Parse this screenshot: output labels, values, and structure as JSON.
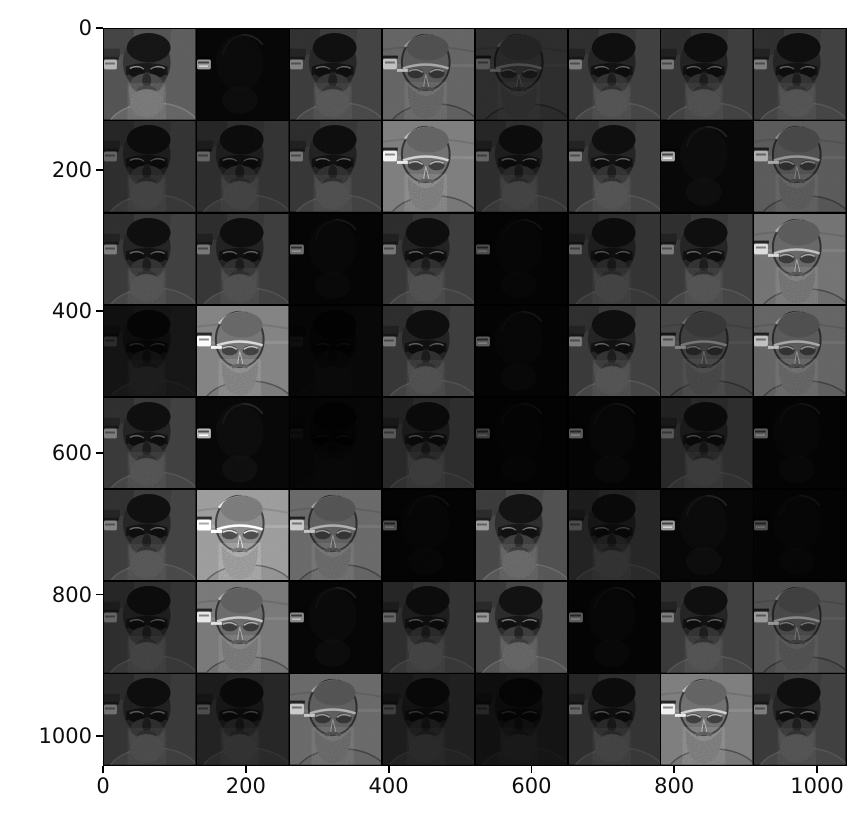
{
  "figure": {
    "title": "",
    "background": "#ffffff"
  },
  "chart_data": {
    "type": "heatmap",
    "subtype": "image-grid",
    "description": "Matplotlib imshow of an 8x8 montage (64 tiles) of dark grayscale convolutional feature maps / filtered versions of a bearded man's portrait. Tiles vary from nearly black (some with a single bright blob at the left edge) to medium-gray embossed relief renderings of the face.",
    "title": "",
    "xlabel": "",
    "ylabel": "",
    "x_ticks": [
      0,
      200,
      400,
      600,
      800,
      1000
    ],
    "y_ticks": [
      0,
      200,
      400,
      600,
      800,
      1000
    ],
    "x_range": [
      0,
      1042
    ],
    "y_range": [
      0,
      1042
    ],
    "y_inverted": true,
    "grid_rows": 8,
    "grid_cols": 8,
    "cell_size_units": 128,
    "padding_units": 2,
    "tile_legend": "Each entry is variant:brightness. variant = face (normal dark face map) | emboss (lighter relief/edge map) | spot (near-black with bright left blob) | dark (very dim face). brightness = relative intensity multiplier.",
    "tiles": [
      [
        "face:1.45",
        "spot:1.0",
        "face:1.05",
        "emboss:1.0",
        "emboss:0.45",
        "face:1.0",
        "face:0.95",
        "face:1.0"
      ],
      [
        "face:0.8",
        "face:0.8",
        "face:0.95",
        "emboss:1.25",
        "face:0.8",
        "face:1.0",
        "spot:1.1",
        "emboss:0.9"
      ],
      [
        "face:1.0",
        "face:0.95",
        "spot:0.7",
        "face:0.95",
        "spot:0.5",
        "face:0.8",
        "face:1.0",
        "emboss:1.15"
      ],
      [
        "dark:0.35",
        "emboss:1.3",
        "dark:0.12",
        "face:0.95",
        "spot:0.6",
        "face:1.0",
        "emboss:0.7",
        "emboss:1.0"
      ],
      [
        "face:1.0",
        "spot:1.2",
        "dark:0.1",
        "face:0.7",
        "spot:0.4",
        "spot:0.6",
        "face:0.7",
        "spot:0.6"
      ],
      [
        "face:1.05",
        "emboss:1.55",
        "emboss:1.05",
        "spot:0.5",
        "face:1.25",
        "face:0.6",
        "spot:1.0",
        "spot:0.5"
      ],
      [
        "face:0.8",
        "emboss:1.2",
        "spot:0.9",
        "face:0.8",
        "face:1.2",
        "spot:0.6",
        "face:1.0",
        "emboss:0.8"
      ],
      [
        "face:0.9",
        "face:0.6",
        "emboss:1.05",
        "dark:0.5",
        "dark:0.3",
        "face:0.8",
        "emboss:1.25",
        "face:1.0"
      ]
    ],
    "palette": {
      "figure_background": "#ffffff",
      "tick_color": "#0d0d0d",
      "grid_gap": "#000000",
      "tile_face_bg": "#383838",
      "tile_emboss_bg": "#636363",
      "tile_black": "#060606",
      "left_blob": "#9a9a9a"
    },
    "legend_position": "none",
    "grid_lines": false
  }
}
